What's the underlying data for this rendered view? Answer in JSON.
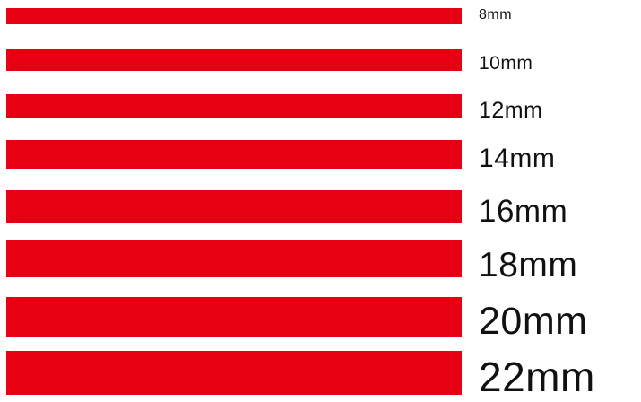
{
  "colors": {
    "stripe": "#e60012",
    "label_text": "#111111",
    "background": "#ffffff"
  },
  "swatches": [
    {
      "label": "8mm"
    },
    {
      "label": "10mm"
    },
    {
      "label": "12mm"
    },
    {
      "label": "14mm"
    },
    {
      "label": "16mm"
    },
    {
      "label": "18mm"
    },
    {
      "label": "20mm"
    },
    {
      "label": "22mm"
    }
  ]
}
